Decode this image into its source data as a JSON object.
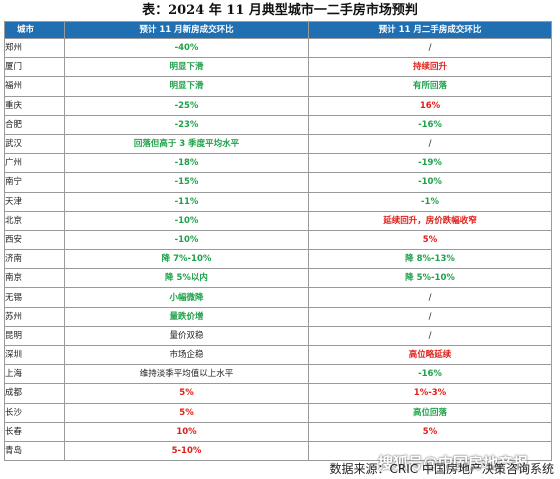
{
  "title": "表：2024 年 11 月典型城市一二手房市场预判",
  "headers": [
    "城市",
    "预计 11 月新房成交环比",
    "预计 11 月二手房成交环比"
  ],
  "rows": [
    {
      "city": "郑州",
      "new": "-40%",
      "new_color": "green",
      "second": "/",
      "second_color": "black"
    },
    {
      "city": "厦门",
      "new": "明显下滑",
      "new_color": "green",
      "second": "持续回升",
      "second_color": "red"
    },
    {
      "city": "福州",
      "new": "明显下滑",
      "new_color": "green",
      "second": "有所回落",
      "second_color": "green"
    },
    {
      "city": "重庆",
      "new": "-25%",
      "new_color": "green",
      "second": "16%",
      "second_color": "red"
    },
    {
      "city": "合肥",
      "new": "-23%",
      "new_color": "green",
      "second": "-16%",
      "second_color": "green"
    },
    {
      "city": "武汉",
      "new": "回落但高于 3 季度平均水平",
      "new_color": "green",
      "second": "/",
      "second_color": "black"
    },
    {
      "city": "广州",
      "new": "-18%",
      "new_color": "green",
      "second": "-19%",
      "second_color": "green"
    },
    {
      "city": "南宁",
      "new": "-15%",
      "new_color": "green",
      "second": "-10%",
      "second_color": "green"
    },
    {
      "city": "天津",
      "new": "-11%",
      "new_color": "green",
      "second": "-1%",
      "second_color": "green"
    },
    {
      "city": "北京",
      "new": "-10%",
      "new_color": "green",
      "second": "延续回升，房价跌幅收窄",
      "second_color": "red"
    },
    {
      "city": "西安",
      "new": "-10%",
      "new_color": "green",
      "second": "5%",
      "second_color": "red"
    },
    {
      "city": "济南",
      "new": "降 7%-10%",
      "new_color": "green",
      "second": "降 8%-13%",
      "second_color": "green"
    },
    {
      "city": "南京",
      "new": "降 5%以内",
      "new_color": "green",
      "second": "降 5%-10%",
      "second_color": "green"
    },
    {
      "city": "无锡",
      "new": "小幅微降",
      "new_color": "green",
      "second": "/",
      "second_color": "black"
    },
    {
      "city": "苏州",
      "new": "量跌价增",
      "new_color": "green",
      "second": "/",
      "second_color": "black"
    },
    {
      "city": "昆明",
      "new": "量价双稳",
      "new_color": "black",
      "second": "/",
      "second_color": "black"
    },
    {
      "city": "深圳",
      "new": "市场企稳",
      "new_color": "black",
      "second": "高位略延续",
      "second_color": "red"
    },
    {
      "city": "上海",
      "new": "维持淡季平均值以上水平",
      "new_color": "black",
      "second": "-16%",
      "second_color": "green"
    },
    {
      "city": "成都",
      "new": "5%",
      "new_color": "red",
      "second": "1%-3%",
      "second_color": "red"
    },
    {
      "city": "长沙",
      "new": "5%",
      "new_color": "red",
      "second": "高位回落",
      "second_color": "green"
    },
    {
      "city": "长春",
      "new": "10%",
      "new_color": "red",
      "second": "5%",
      "second_color": "red"
    },
    {
      "city": "青岛",
      "new": "5-10%",
      "new_color": "red",
      "second": "",
      "second_color": "black"
    }
  ],
  "source": "数据来源：CRIC 中国房地产决策咨询系统",
  "watermark": "搜狐号@中国房地产报"
}
